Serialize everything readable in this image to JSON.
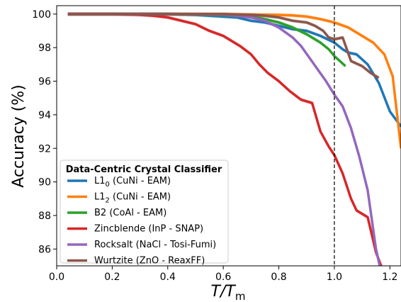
{
  "chart_data": {
    "type": "line",
    "xlabel_main": "T/T",
    "xlabel_sub": "m",
    "ylabel": "Accuracy (%)",
    "xlim": [
      0.0,
      1.24
    ],
    "ylim": [
      85.0,
      100.5
    ],
    "xticks": [
      0.0,
      0.2,
      0.4,
      0.6,
      0.8,
      1.0,
      1.2
    ],
    "xtick_labels": [
      "0.0",
      "0.2",
      "0.4",
      "0.6",
      "0.8",
      "1.0",
      "1.2"
    ],
    "yticks": [
      86,
      88,
      90,
      92,
      94,
      96,
      98,
      100
    ],
    "ytick_labels": [
      "86",
      "88",
      "90",
      "92",
      "94",
      "96",
      "98",
      "100"
    ],
    "vline_x": 1.0,
    "vline_style": "dashed",
    "legend": {
      "title": "Data-Centric Crystal Classifier",
      "placement": "lower-left"
    },
    "series": [
      {
        "name_main": "L1",
        "name_sub": "0",
        "name_rest": " (CuNi - EAM)",
        "color": "#1f77b4",
        "x": [
          0.04,
          0.2,
          0.3,
          0.4,
          0.5,
          0.55,
          0.6,
          0.65,
          0.7,
          0.75,
          0.8,
          0.85,
          0.9,
          0.95,
          1.0,
          1.03,
          1.05,
          1.08,
          1.12,
          1.16,
          1.2,
          1.24
        ],
        "y": [
          100,
          100,
          100,
          100,
          99.95,
          99.9,
          99.85,
          99.8,
          99.6,
          99.5,
          99.3,
          99.1,
          99.0,
          98.7,
          98.3,
          97.9,
          97.7,
          97.6,
          97.0,
          95.9,
          94.2,
          93.3
        ]
      },
      {
        "name_main": "L1",
        "name_sub": "2",
        "name_rest": " (CuNi - EAM)",
        "color": "#ff7f0e",
        "x": [
          0.04,
          0.2,
          0.4,
          0.6,
          0.7,
          0.8,
          0.85,
          0.9,
          0.95,
          1.0,
          1.05,
          1.1,
          1.14,
          1.18,
          1.21,
          1.24
        ],
        "y": [
          100,
          100,
          100,
          100,
          99.97,
          99.95,
          99.92,
          99.85,
          99.7,
          99.5,
          99.2,
          98.7,
          98.3,
          97.6,
          96.3,
          92.0
        ]
      },
      {
        "name_main": "B2 (CoAl - EAM)",
        "name_sub": "",
        "name_rest": "",
        "color": "#2ca02c",
        "x": [
          0.04,
          0.2,
          0.4,
          0.6,
          0.7,
          0.75,
          0.8,
          0.85,
          0.9,
          0.95,
          0.98,
          1.0,
          1.02,
          1.04
        ],
        "y": [
          100,
          100,
          100,
          99.95,
          99.85,
          99.7,
          99.5,
          99.2,
          98.8,
          98.3,
          97.9,
          97.5,
          97.2,
          96.9
        ]
      },
      {
        "name_main": "Zincblende (InP - SNAP)",
        "name_sub": "",
        "name_rest": "",
        "color": "#d62728",
        "x": [
          0.04,
          0.2,
          0.3,
          0.35,
          0.4,
          0.45,
          0.5,
          0.55,
          0.6,
          0.63,
          0.66,
          0.7,
          0.73,
          0.76,
          0.8,
          0.84,
          0.88,
          0.92,
          0.95,
          0.98,
          1.0,
          1.03,
          1.06,
          1.08,
          1.12,
          1.15,
          1.18
        ],
        "y": [
          100,
          100,
          99.95,
          99.9,
          99.8,
          99.6,
          99.4,
          99.0,
          98.7,
          98.4,
          98.1,
          97.6,
          97.0,
          96.5,
          96.0,
          95.4,
          94.9,
          94.7,
          93.0,
          92.1,
          91.6,
          90.5,
          89.0,
          88.3,
          87.9,
          85.8,
          84.5
        ]
      },
      {
        "name_main": "Rocksalt (NaCl - Tosi-Fumi)",
        "name_sub": "",
        "name_rest": "",
        "color": "#9467bd",
        "x": [
          0.04,
          0.2,
          0.4,
          0.6,
          0.65,
          0.7,
          0.75,
          0.8,
          0.85,
          0.88,
          0.91,
          0.94,
          0.97,
          1.0,
          1.03,
          1.06,
          1.09,
          1.12,
          1.15,
          1.17
        ],
        "y": [
          100,
          100,
          100,
          99.97,
          99.9,
          99.8,
          99.6,
          99.2,
          98.6,
          98.1,
          97.4,
          96.7,
          96.0,
          95.2,
          94.5,
          93.2,
          91.5,
          89.5,
          86.0,
          84.5
        ]
      },
      {
        "name_main": "Wurtzite (ZnO - ReaxFF)",
        "name_sub": "",
        "name_rest": "",
        "color": "#8c564b",
        "x": [
          0.04,
          0.2,
          0.4,
          0.6,
          0.7,
          0.75,
          0.8,
          0.85,
          0.9,
          0.93,
          0.96,
          0.98,
          1.0,
          1.03,
          1.06,
          1.1,
          1.13,
          1.16
        ],
        "y": [
          100,
          100,
          100,
          100,
          99.95,
          99.9,
          99.8,
          99.6,
          99.5,
          99.3,
          99.0,
          98.6,
          98.5,
          98.6,
          97.2,
          96.9,
          96.5,
          96.2
        ]
      }
    ]
  }
}
